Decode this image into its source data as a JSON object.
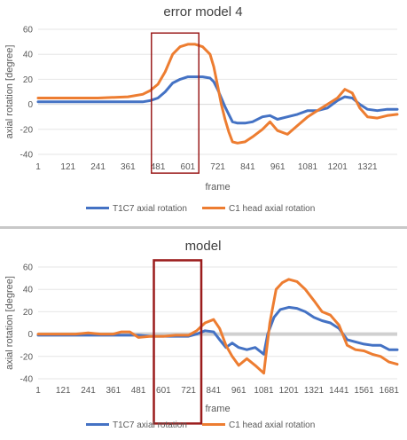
{
  "chart_data": [
    {
      "type": "line",
      "title": "error model 4",
      "xlabel": "frame",
      "ylabel": "axial rotation [degree]",
      "ylim": [
        -40,
        60
      ],
      "yticks": [
        -40,
        -20,
        0,
        20,
        40,
        60
      ],
      "xticks": [
        1,
        121,
        241,
        361,
        481,
        601,
        721,
        841,
        961,
        1081,
        1201,
        1321
      ],
      "xlim": [
        1,
        1440
      ],
      "grid": "horizontal",
      "legend": "bottom",
      "highlight_box": {
        "x": [
          455,
          645
        ],
        "y": [
          -55,
          57
        ]
      },
      "series": [
        {
          "name": "T1C7 axial rotation",
          "color": "#4472c4",
          "x": [
            1,
            60,
            121,
            241,
            361,
            420,
            450,
            481,
            510,
            540,
            570,
            601,
            630,
            660,
            690,
            705,
            720,
            735,
            750,
            765,
            780,
            800,
            830,
            860,
            900,
            930,
            960,
            1000,
            1040,
            1081,
            1120,
            1160,
            1200,
            1230,
            1260,
            1290,
            1321,
            1360,
            1400,
            1440
          ],
          "values": [
            2,
            2,
            2,
            2,
            2,
            2,
            3,
            5,
            10,
            17,
            20,
            22,
            22,
            22,
            21,
            18,
            12,
            5,
            -2,
            -8,
            -14,
            -15,
            -15,
            -14,
            -10,
            -9,
            -12,
            -10,
            -8,
            -5,
            -5,
            -3,
            3,
            6,
            5,
            0,
            -4,
            -5,
            -4,
            -4
          ]
        },
        {
          "name": "C1 head axial rotation",
          "color": "#ed7d31",
          "x": [
            1,
            60,
            121,
            241,
            361,
            420,
            450,
            481,
            510,
            540,
            570,
            601,
            630,
            660,
            690,
            705,
            720,
            735,
            750,
            765,
            780,
            800,
            830,
            860,
            900,
            930,
            960,
            1000,
            1040,
            1081,
            1120,
            1160,
            1200,
            1230,
            1260,
            1290,
            1321,
            1360,
            1400,
            1440
          ],
          "values": [
            5,
            5,
            5,
            5,
            6,
            8,
            11,
            16,
            26,
            40,
            46,
            48,
            48,
            46,
            40,
            30,
            15,
            0,
            -12,
            -22,
            -30,
            -31,
            -30,
            -26,
            -20,
            -14,
            -21,
            -24,
            -17,
            -10,
            -5,
            0,
            5,
            12,
            9,
            -3,
            -10,
            -11,
            -9,
            -8
          ]
        }
      ]
    },
    {
      "type": "line",
      "title": "model",
      "xlabel": "frame",
      "ylabel": "axial rotation [degree]",
      "ylim": [
        -40,
        60
      ],
      "yticks": [
        -40,
        -20,
        0,
        20,
        40,
        60
      ],
      "xticks": [
        1,
        121,
        241,
        361,
        481,
        601,
        721,
        841,
        961,
        1081,
        1201,
        1321,
        1441,
        1561,
        1681
      ],
      "xlim": [
        1,
        1720
      ],
      "grid": "horizontal",
      "legend": "bottom",
      "highlight_box": {
        "x": [
          555,
          782
        ],
        "y": [
          -80,
          66
        ]
      },
      "series": [
        {
          "name": "T1C7 axial rotation",
          "color": "#4472c4",
          "x": [
            1,
            60,
            121,
            180,
            241,
            300,
            361,
            420,
            481,
            540,
            601,
            660,
            721,
            760,
            800,
            841,
            870,
            900,
            930,
            961,
            1000,
            1040,
            1081,
            1100,
            1130,
            1160,
            1201,
            1240,
            1280,
            1321,
            1360,
            1400,
            1441,
            1480,
            1520,
            1561,
            1600,
            1640,
            1681,
            1720
          ],
          "values": [
            -1,
            -1,
            -1,
            -1,
            -1,
            -1,
            -1,
            -1,
            -1,
            -2,
            -2,
            -2,
            -2,
            0,
            3,
            2,
            -5,
            -12,
            -8,
            -12,
            -14,
            -12,
            -18,
            0,
            15,
            22,
            24,
            23,
            20,
            15,
            12,
            10,
            5,
            -5,
            -7,
            -9,
            -10,
            -10,
            -14,
            -14
          ]
        },
        {
          "name": "C1 head axial rotation",
          "color": "#ed7d31",
          "x": [
            1,
            60,
            121,
            180,
            241,
            300,
            361,
            400,
            440,
            481,
            540,
            601,
            660,
            721,
            760,
            800,
            841,
            870,
            900,
            930,
            961,
            1000,
            1040,
            1081,
            1110,
            1140,
            1170,
            1201,
            1240,
            1280,
            1321,
            1360,
            1400,
            1441,
            1480,
            1520,
            1561,
            1600,
            1640,
            1681,
            1720
          ],
          "values": [
            0,
            0,
            0,
            0,
            1,
            0,
            0,
            2,
            2,
            -3,
            -2,
            -2,
            -1,
            -1,
            3,
            10,
            13,
            5,
            -10,
            -20,
            -28,
            -22,
            -28,
            -35,
            10,
            40,
            46,
            49,
            47,
            40,
            30,
            20,
            17,
            8,
            -10,
            -14,
            -15,
            -18,
            -20,
            -25,
            -27
          ]
        }
      ]
    }
  ]
}
